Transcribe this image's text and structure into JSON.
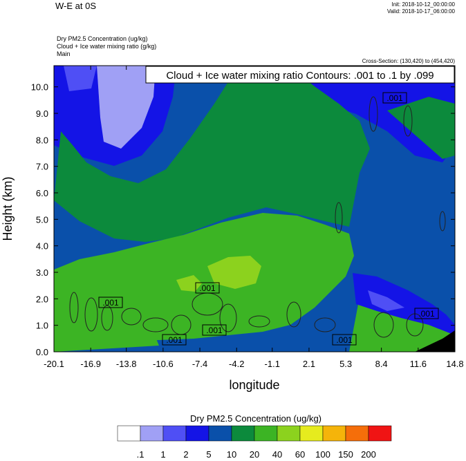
{
  "header": {
    "title": "W-E at 0S",
    "init": "Init: 2018-10-12_00:00:00",
    "valid": "Valid: 2018-10-17_06:00:00",
    "sub1": "Dry PM2.5 Concentration   (ug/kg)",
    "sub2": "Cloud + Ice water mixing ratio   (g/kg)",
    "sub3": "Main",
    "cross_section": "Cross-Section: (130,420) to (454,420)"
  },
  "chart_data": {
    "type": "heatmap",
    "title": "W-E at 0S",
    "contour_label": "Cloud + Ice water mixing ratio Contours: .001 to .1 by .099",
    "xlabel": "longitude",
    "ylabel": "Height (km)",
    "xlim": [
      -20.1,
      14.8
    ],
    "ylim": [
      0.0,
      10.8
    ],
    "x_ticks": [
      "-20.1",
      "-16.9",
      "-13.8",
      "-10.6",
      "-7.4",
      "-4.2",
      "-1.1",
      "2.1",
      "5.3",
      "8.4",
      "11.6",
      "14.8"
    ],
    "y_ticks": [
      "0.0",
      "1.0",
      "2.0",
      "3.0",
      "4.0",
      "5.0",
      "6.0",
      "7.0",
      "8.0",
      "9.0",
      "10.0"
    ],
    "contour_labels": [
      ".001",
      ".001",
      ".001",
      ".001",
      ".001",
      ".001"
    ],
    "colorbar": {
      "title": "Dry PM2.5 Concentration  (ug/kg)",
      "levels": [
        ".1",
        "1",
        "2",
        "5",
        "10",
        "20",
        "40",
        "60",
        "100",
        "150",
        "200"
      ],
      "colors": [
        "#ffffff",
        "#a0a0f5",
        "#4f4ff5",
        "#1414e6",
        "#0a50aa",
        "#0c8a3c",
        "#3cb424",
        "#8cd21e",
        "#e6eb1e",
        "#f5b40a",
        "#f56e0a",
        "#f01414"
      ]
    }
  }
}
